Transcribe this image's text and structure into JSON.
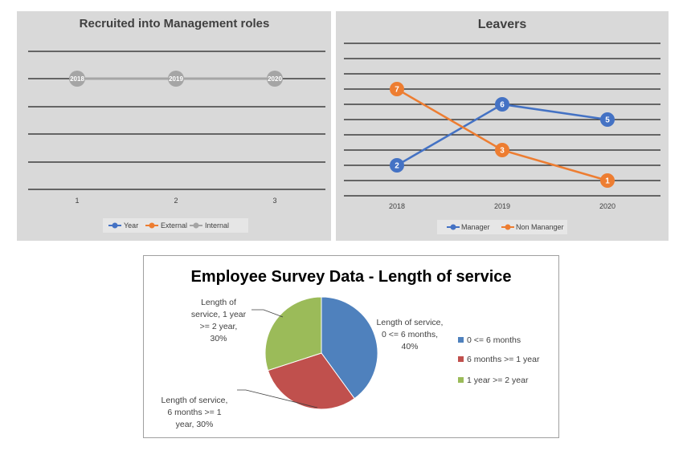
{
  "chart_data": [
    {
      "type": "line",
      "title": "Recruited into Management roles",
      "categories": [
        "1",
        "2",
        "3"
      ],
      "series": [
        {
          "name": "Year",
          "values": [
            null,
            null,
            null
          ],
          "color": "#4472C4"
        },
        {
          "name": "External",
          "values": [
            null,
            null,
            null
          ],
          "color": "#ED7D31"
        },
        {
          "name": "Internal",
          "values": [
            null,
            null,
            null
          ],
          "color": "#A5A5A5",
          "point_labels": [
            "2018",
            "2019",
            "2020"
          ]
        }
      ],
      "legend": "bottom",
      "grid": true,
      "background": "#d9d9d9"
    },
    {
      "type": "line",
      "title": "Leavers",
      "categories": [
        "2018",
        "2019",
        "2020"
      ],
      "series": [
        {
          "name": "Manager",
          "values": [
            2,
            6,
            5
          ],
          "color": "#4472C4"
        },
        {
          "name": "Non Mananger",
          "values": [
            7,
            3,
            1
          ],
          "color": "#ED7D31"
        }
      ],
      "ylim": [
        0,
        10
      ],
      "legend": "bottom",
      "grid": true,
      "background": "#d9d9d9"
    },
    {
      "type": "pie",
      "title": "Employee Survey Data - Length of service",
      "labels": [
        "0 <= 6 months",
        "6 months >= 1 year",
        "1 year >= 2 year"
      ],
      "values": [
        40,
        30,
        30
      ],
      "colors": [
        "#4F81BD",
        "#C0504D",
        "#9BBB59"
      ],
      "data_labels": [
        [
          "Length of service,",
          "0 <= 6 months,",
          "40%"
        ],
        [
          "Length of service,",
          "6 months >= 1",
          "year, 30%"
        ],
        [
          "Length of",
          "service, 1 year",
          ">= 2 year,",
          "30%"
        ]
      ],
      "legend": "right"
    }
  ]
}
